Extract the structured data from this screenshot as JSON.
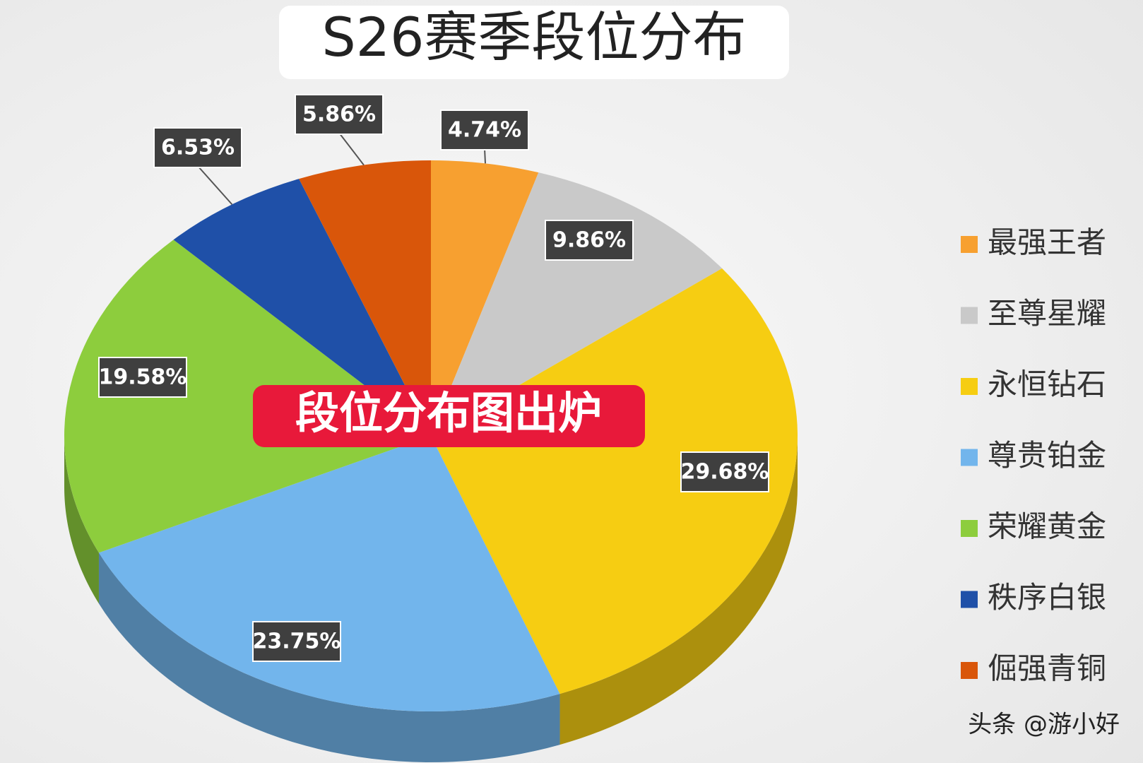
{
  "chart_data": {
    "type": "pie",
    "title": "S26赛季段位分布",
    "annotation": "段位分布图出炉",
    "watermark": "头条 @游小好",
    "categories": [
      "最强王者",
      "至尊星耀",
      "永恒钻石",
      "尊贵铂金",
      "荣耀黄金",
      "秩序白银",
      "倔强青铜"
    ],
    "values": [
      4.74,
      9.86,
      29.68,
      23.75,
      19.58,
      6.53,
      5.86
    ],
    "value_labels": [
      "4.74%",
      "9.86%",
      "29.68%",
      "23.75%",
      "19.58%",
      "6.53%",
      "5.86%"
    ],
    "colors": [
      "#f7a030",
      "#c9c9c9",
      "#f6cd12",
      "#72b5ec",
      "#8dcd3d",
      "#1f50a8",
      "#d9560a"
    ],
    "legend": "right"
  }
}
